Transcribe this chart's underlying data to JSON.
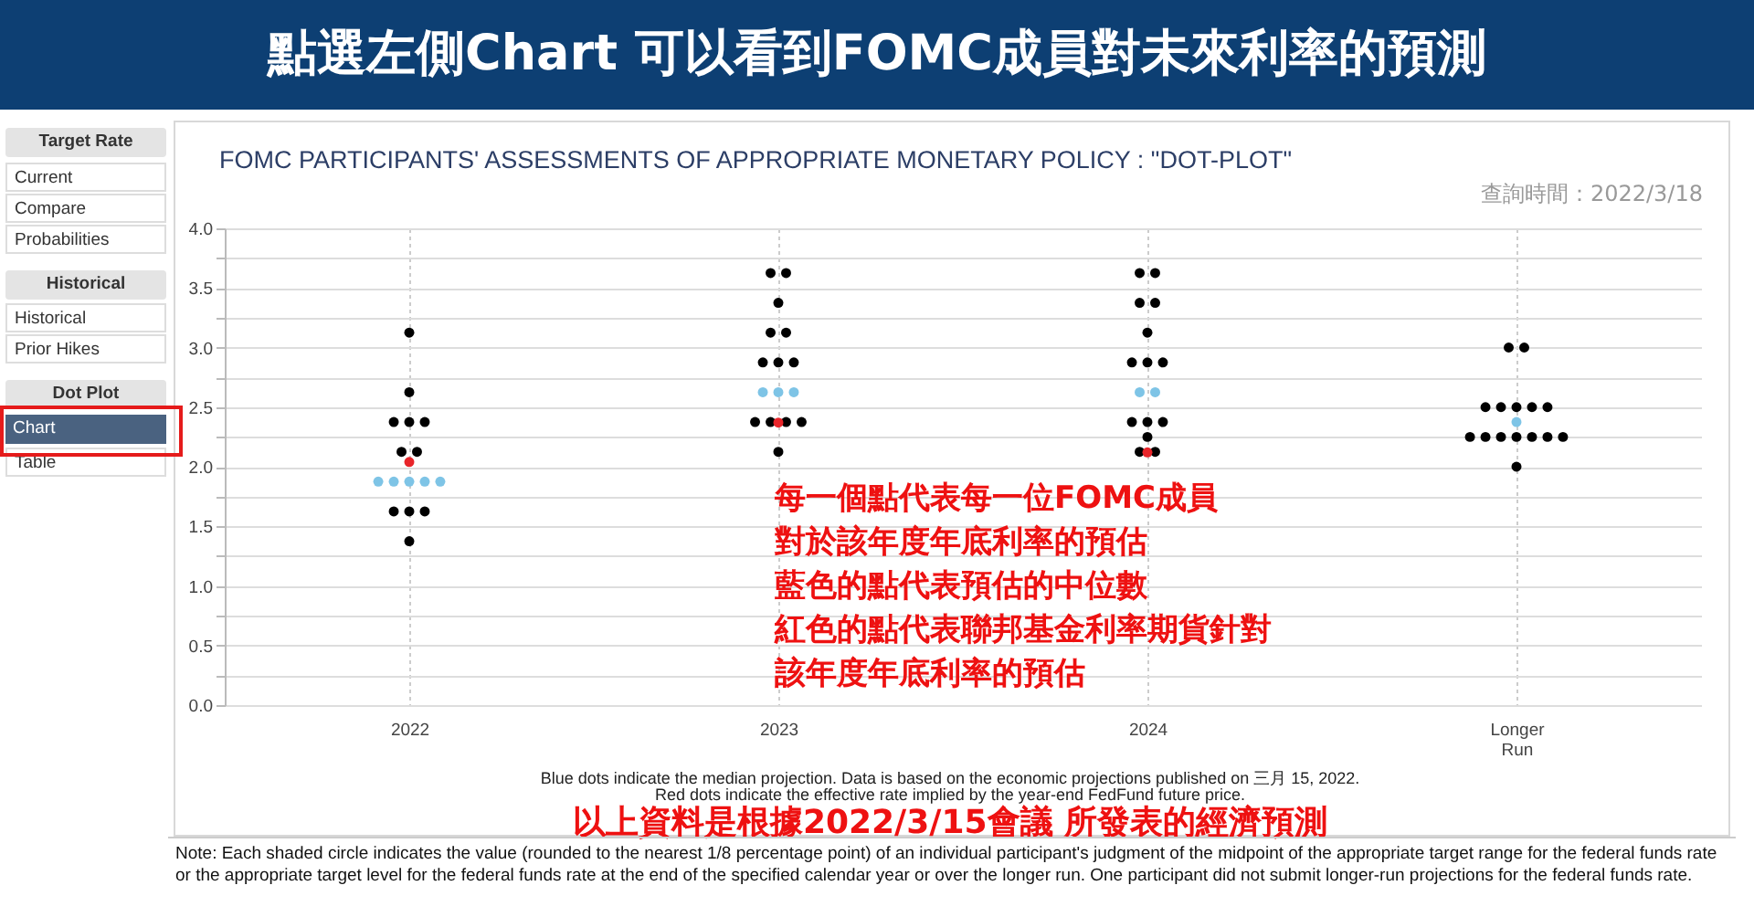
{
  "chart_data": {
    "type": "scatter",
    "title": "FOMC PARTICIPANTS' ASSESSMENTS OF APPROPRIATE MONETARY POLICY : \"DOT-PLOT\"",
    "subtitle": "查詢時間：2022/3/18",
    "categories": [
      "2022",
      "2023",
      "2024",
      "Longer Run"
    ],
    "series": [
      {
        "color": "#000000",
        "values": [
          3.125,
          3.625,
          3.625,
          3.0
        ]
      },
      {
        "color": "#000000",
        "values": [
          2.625,
          3.625,
          3.625,
          3.0
        ]
      },
      {
        "color": "#000000",
        "values": [
          2.375,
          3.375,
          3.375,
          2.5
        ]
      },
      {
        "color": "#000000",
        "values": [
          2.375,
          3.125,
          3.375,
          2.5
        ]
      },
      {
        "color": "#000000",
        "values": [
          2.375,
          3.125,
          3.125,
          2.5
        ]
      },
      {
        "color": "#000000",
        "values": [
          2.125,
          2.875,
          2.875,
          2.5
        ]
      },
      {
        "color": "#000000",
        "values": [
          2.125,
          2.875,
          2.875,
          2.5
        ]
      },
      {
        "color": "#000000",
        "values": [
          1.625,
          2.875,
          2.875,
          2.25
        ]
      },
      {
        "color": "#000000",
        "values": [
          1.625,
          2.375,
          2.375,
          2.25
        ]
      },
      {
        "color": "#000000",
        "values": [
          1.625,
          2.375,
          2.375,
          2.25
        ]
      },
      {
        "color": "#000000",
        "values": [
          1.375,
          2.375,
          2.375,
          2.25
        ]
      },
      {
        "color": "#000000",
        "values": [
          null,
          2.375,
          2.25,
          2.25
        ]
      },
      {
        "color": "#000000",
        "values": [
          null,
          2.125,
          2.125,
          2.25
        ]
      },
      {
        "color": "#000000",
        "values": [
          null,
          null,
          2.125,
          2.25
        ]
      },
      {
        "color": "#000000",
        "values": [
          null,
          null,
          null,
          2.0
        ]
      },
      {
        "color": "#7ec4e6",
        "values": [
          1.875,
          2.625,
          2.625,
          2.375
        ]
      },
      {
        "color": "#7ec4e6",
        "values": [
          1.875,
          2.625,
          2.625,
          null
        ]
      },
      {
        "color": "#7ec4e6",
        "values": [
          1.875,
          2.625,
          null,
          null
        ]
      },
      {
        "color": "#7ec4e6",
        "values": [
          1.875,
          null,
          null,
          null
        ]
      },
      {
        "color": "#7ec4e6",
        "values": [
          1.875,
          null,
          null,
          null
        ]
      },
      {
        "color": "#e8252a",
        "values": [
          2.04,
          2.37,
          2.12,
          null
        ]
      }
    ],
    "ylim": [
      0,
      4
    ],
    "yticks": [
      {
        "value": 0,
        "label": "0.0"
      },
      {
        "value": 0.25,
        "label": null
      },
      {
        "value": 0.5,
        "label": "0.5"
      },
      {
        "value": 0.75,
        "label": null
      },
      {
        "value": 1,
        "label": "1.0"
      },
      {
        "value": 1.25,
        "label": null
      },
      {
        "value": 1.5,
        "label": "1.5"
      },
      {
        "value": 1.75,
        "label": null
      },
      {
        "value": 2,
        "label": "2.0"
      },
      {
        "value": 2.25,
        "label": null
      },
      {
        "value": 2.5,
        "label": "2.5"
      },
      {
        "value": 2.75,
        "label": null
      },
      {
        "value": 3,
        "label": "3.0"
      },
      {
        "value": 3.25,
        "label": null
      },
      {
        "value": 3.5,
        "label": "3.5"
      },
      {
        "value": 3.75,
        "label": null
      },
      {
        "value": 4,
        "label": "4.0"
      }
    ],
    "grid": true,
    "marker": "circle",
    "annotations": [
      "點選左側Chart 可以看到FOMC成員對未來利率的預測",
      "每一個點代表每一位FOMC成員",
      "對於該年度年底利率的預估",
      "藍色的點代表預估的中位數",
      "紅色的點代表聯邦基金利率期貨針對",
      "該年度年底利率的預估",
      "Blue dots indicate the median projection. Data is based on the economic projections published on 三月 15, 2022.",
      "Red dots indicate the effective rate implied by the year-end FedFund future price.",
      "以上資料是根據2022/3/15會議 所發表的經濟預測",
      "Note: Each shaded circle indicates the value (rounded to the nearest 1/8 percentage point) of an individual participant's judgment of the midpoint of the appropriate target range for the federal funds rate or the appropriate target level for the federal funds rate at the end of the specified calendar year or over the longer run. One participant did not submit longer-run projections for the federal funds rate.",
      "Target Rate",
      "Current",
      "Compare",
      "Probabilities",
      "Historical",
      "Historical",
      "Prior Hikes",
      "Dot Plot",
      "Chart",
      "Table"
    ]
  }
}
